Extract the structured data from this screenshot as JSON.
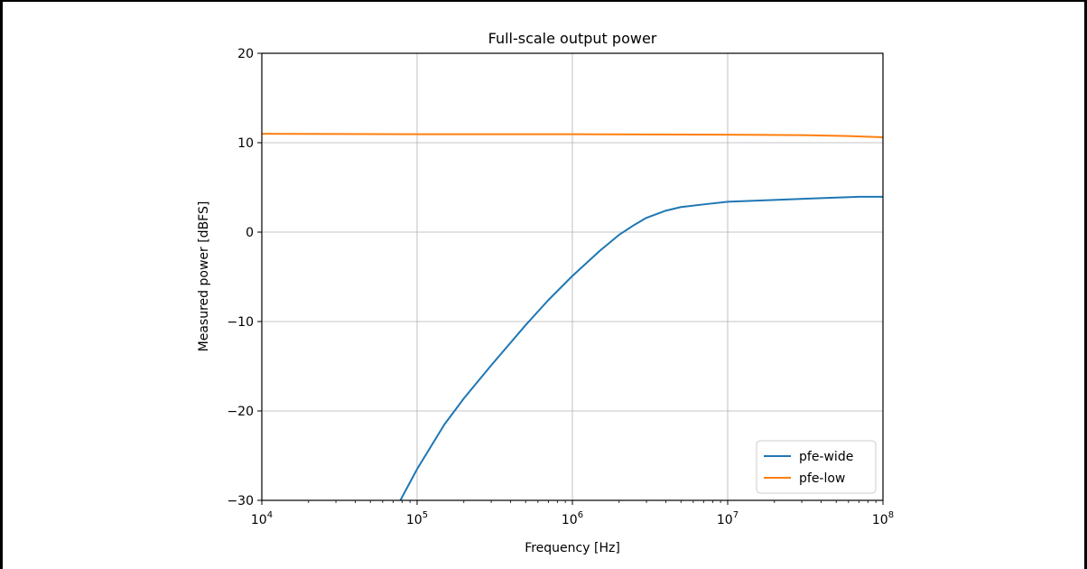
{
  "chart_data": {
    "type": "line",
    "title": "Full-scale output power",
    "xlabel": "Frequency [Hz]",
    "ylabel": "Measured power [dBFS]",
    "x_scale": "log",
    "xlim": [
      10000,
      100000000
    ],
    "ylim": [
      -30,
      20
    ],
    "x_ticks": [
      {
        "value": 10000,
        "base": "10",
        "exp": "4"
      },
      {
        "value": 100000,
        "base": "10",
        "exp": "5"
      },
      {
        "value": 1000000,
        "base": "10",
        "exp": "6"
      },
      {
        "value": 10000000,
        "base": "10",
        "exp": "7"
      },
      {
        "value": 100000000,
        "base": "10",
        "exp": "8"
      }
    ],
    "y_ticks": [
      {
        "value": 20,
        "label": "20"
      },
      {
        "value": 10,
        "label": "10"
      },
      {
        "value": 0,
        "label": "0"
      },
      {
        "value": -10,
        "label": "−10"
      },
      {
        "value": -20,
        "label": "−20"
      },
      {
        "value": -30,
        "label": "−30"
      }
    ],
    "grid": true,
    "legend_position": "lower-right",
    "series": [
      {
        "name": "pfe-wide",
        "color": "#1f77b4",
        "points": [
          [
            78000,
            -30
          ],
          [
            100000,
            -26.5
          ],
          [
            150000,
            -21.5
          ],
          [
            200000,
            -18.6
          ],
          [
            300000,
            -14.9
          ],
          [
            500000,
            -10.4
          ],
          [
            700000,
            -7.6
          ],
          [
            1000000,
            -4.9
          ],
          [
            1500000,
            -2.1
          ],
          [
            2000000,
            -0.3
          ],
          [
            2500000,
            0.8
          ],
          [
            3000000,
            1.6
          ],
          [
            4000000,
            2.4
          ],
          [
            5000000,
            2.8
          ],
          [
            7000000,
            3.1
          ],
          [
            10000000,
            3.4
          ],
          [
            20000000,
            3.6
          ],
          [
            40000000,
            3.8
          ],
          [
            70000000,
            3.95
          ],
          [
            100000000,
            3.95
          ]
        ]
      },
      {
        "name": "pfe-low",
        "color": "#ff7f0e",
        "points": [
          [
            10000,
            11.0
          ],
          [
            100000,
            10.95
          ],
          [
            1000000,
            10.95
          ],
          [
            10000000,
            10.9
          ],
          [
            30000000,
            10.85
          ],
          [
            60000000,
            10.75
          ],
          [
            100000000,
            10.6
          ]
        ]
      }
    ]
  }
}
